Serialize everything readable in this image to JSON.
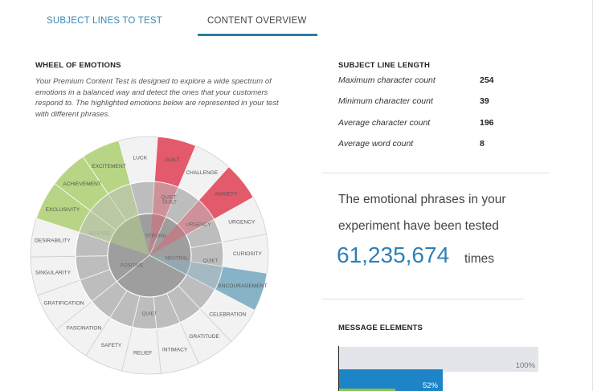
{
  "tabs": [
    {
      "label": "SUBJECT LINES TO TEST"
    },
    {
      "label": "CONTENT OVERVIEW"
    }
  ],
  "wheel": {
    "title": "WHEEL OF EMOTIONS",
    "description": "Your Premium Content Test is designed to explore a wide spectrum of emotions in a balanced way and detect the ones that your customers respond to. The highlighted emotions below are represented in your test with different phrases.",
    "outer_labels": [
      "LUCK",
      "GUILT",
      "CHALLENGE",
      "ANXIETY",
      "URGENCY",
      "CURIOSITY",
      "ENCOURAGEMENT",
      "CELEBRATION",
      "GRATITUDE",
      "INTIMACY",
      "RELIEF",
      "SAFETY",
      "FASCINATION",
      "GRATIFICATION",
      "SINGULARITY",
      "DESIRABILITY",
      "EXCLUSIVITY",
      "ACHIEVEMENT",
      "EXCITEMENT"
    ],
    "middle_labels": [
      "QUIET",
      "GUILT",
      "URGENCY",
      "QUIET",
      "QUIET",
      "INTENSE"
    ],
    "inner_labels": [
      "POSITIVE",
      "NEUTRAL",
      "STRONG"
    ],
    "colors": {
      "red": "#e25a6c",
      "green": "#b7d584",
      "blue": "#86b4c6",
      "outer": "#f2f2f2",
      "middle": "#bdbdbd",
      "inner": "#9e9e9e"
    }
  },
  "subject_length": {
    "title": "SUBJECT LINE LENGTH",
    "metrics": [
      {
        "label": "Maximum character count",
        "value": "254"
      },
      {
        "label": "Minimum character count",
        "value": "39"
      },
      {
        "label": "Average character count",
        "value": "196"
      },
      {
        "label": "Average word count",
        "value": "8"
      }
    ]
  },
  "phrases": {
    "line1": "The emotional phrases in your",
    "line2": "experiment have been tested",
    "count": "61,235,674",
    "suffix": "times"
  },
  "message_elements": {
    "title": "MESSAGE ELEMENTS",
    "total_label": "100%",
    "fill_label": "52%",
    "fill_fraction": 0.52
  }
}
